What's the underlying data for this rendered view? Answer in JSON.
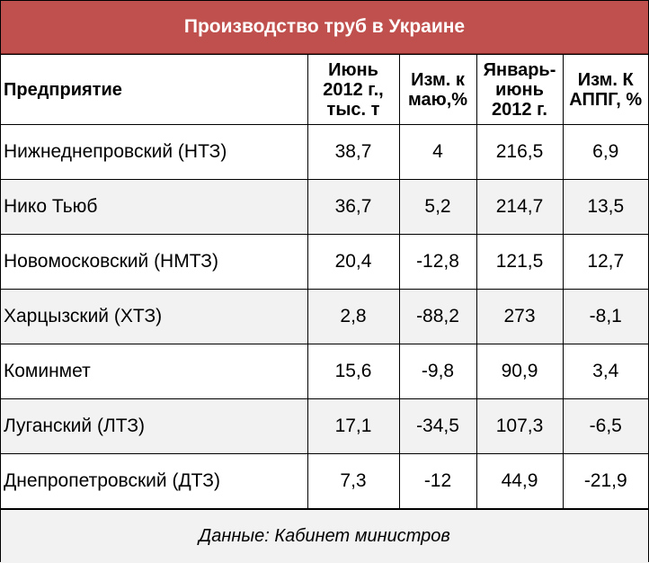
{
  "title": "Производство труб в Украине",
  "columns": [
    "Предприятие",
    "Июнь 2012 г., тыс. т",
    "Изм. к маю,%",
    "Январь-июнь 2012 г.",
    "Изм. К АППГ, %"
  ],
  "rows": [
    [
      "Нижнеднепровский (НТЗ)",
      "38,7",
      "4",
      "216,5",
      "6,9"
    ],
    [
      "Нико Тьюб",
      "36,7",
      "5,2",
      "214,7",
      "13,5"
    ],
    [
      "Новомосковский (НМТЗ)",
      "20,4",
      "-12,8",
      "121,5",
      "12,7"
    ],
    [
      "Харцызский (ХТЗ)",
      "2,8",
      "-88,2",
      "273",
      "-8,1"
    ],
    [
      "Коминмет",
      "15,6",
      "-9,8",
      "90,9",
      "3,4"
    ],
    [
      "Луганский (ЛТЗ)",
      "17,1",
      "-34,5",
      "107,3",
      "-6,5"
    ],
    [
      "Днепропетровский (ДТЗ)",
      "7,3",
      "-12",
      "44,9",
      "-21,9"
    ]
  ],
  "footer": "Данные: Кабинет министров",
  "colors": {
    "title_bg": "#c0504d",
    "title_text": "#ffffff",
    "alt_row_bg": "#f2f2f2"
  }
}
